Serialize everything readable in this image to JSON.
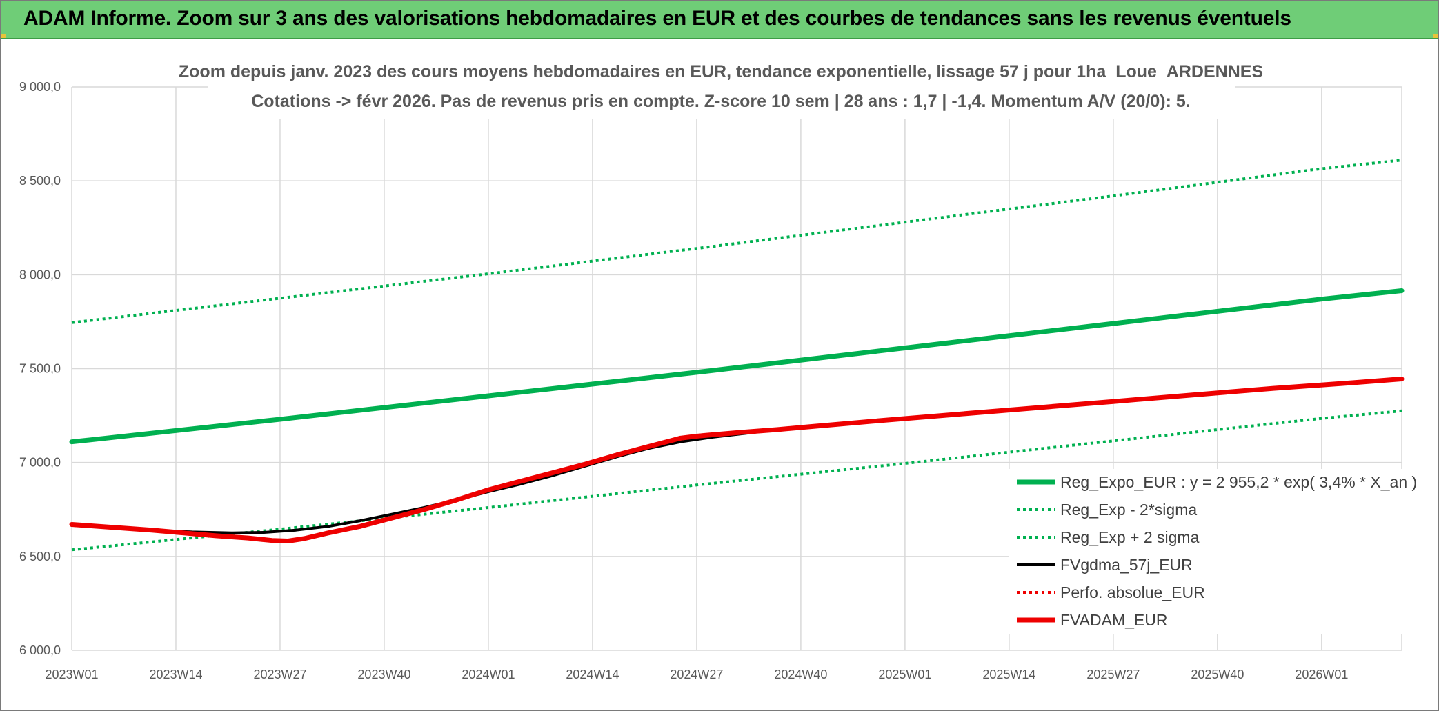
{
  "banner": {
    "title": "ADAM Informe. Zoom sur 3 ans des valorisations hebdomadaires en EUR et des courbes de tendances sans les revenus éventuels"
  },
  "colors": {
    "banner_bg": "#6fcd77",
    "trend_green": "#00b050",
    "fv_black": "#000000",
    "adam_red": "#ee0000",
    "grid": "#d9d9d9",
    "text_gray": "#595959"
  },
  "chart_data": {
    "type": "line",
    "title": [
      "Zoom depuis janv. 2023 des cours moyens hebdomadaires en EUR, tendance exponentielle, lissage 57 j pour 1ha_Loue_ARDENNES",
      "Cotations -> févr 2026. Pas de revenus pris en compte. Z-score 10 sem | 28 ans : 1,7 | -1,4. Momentum A/V (20/0): 5."
    ],
    "xlabel": "",
    "ylabel": "",
    "ylim": [
      6000,
      9000
    ],
    "y_ticks": [
      "6 000,0",
      "6 500,0",
      "7 000,0",
      "7 500,0",
      "8 000,0",
      "8 500,0",
      "9 000,0"
    ],
    "x_range_weeks": [
      0,
      166
    ],
    "x_ticks": [
      {
        "week": 0,
        "label": "2023W01"
      },
      {
        "week": 13,
        "label": "2023W14"
      },
      {
        "week": 26,
        "label": "2023W27"
      },
      {
        "week": 39,
        "label": "2023W40"
      },
      {
        "week": 52,
        "label": "2024W01"
      },
      {
        "week": 65,
        "label": "2024W14"
      },
      {
        "week": 78,
        "label": "2024W27"
      },
      {
        "week": 91,
        "label": "2024W40"
      },
      {
        "week": 104,
        "label": "2025W01"
      },
      {
        "week": 117,
        "label": "2025W14"
      },
      {
        "week": 130,
        "label": "2025W27"
      },
      {
        "week": 143,
        "label": "2025W40"
      },
      {
        "week": 156,
        "label": "2026W01"
      }
    ],
    "grid": true,
    "legend_position": "bottom-right",
    "series": [
      {
        "name": "Reg_Expo_EUR : y = 2 955,2 * exp( 3,4% *  X_an )",
        "style": "solid-thick",
        "color": "#00b050",
        "points": [
          [
            0,
            7110
          ],
          [
            26,
            7230
          ],
          [
            52,
            7355
          ],
          [
            78,
            7480
          ],
          [
            104,
            7610
          ],
          [
            130,
            7740
          ],
          [
            156,
            7870
          ],
          [
            166,
            7915
          ]
        ]
      },
      {
        "name": "Reg_Exp - 2*sigma",
        "style": "dotted",
        "color": "#00b050",
        "points": [
          [
            0,
            6535
          ],
          [
            26,
            6645
          ],
          [
            52,
            6760
          ],
          [
            78,
            6880
          ],
          [
            104,
            6995
          ],
          [
            130,
            7115
          ],
          [
            156,
            7235
          ],
          [
            166,
            7275
          ]
        ]
      },
      {
        "name": "Reg_Exp + 2 sigma",
        "style": "dotted",
        "color": "#00b050",
        "points": [
          [
            0,
            7745
          ],
          [
            26,
            7875
          ],
          [
            52,
            8005
          ],
          [
            78,
            8140
          ],
          [
            104,
            8280
          ],
          [
            130,
            8420
          ],
          [
            156,
            8565
          ],
          [
            166,
            8610
          ]
        ]
      },
      {
        "name": "FVgdma_57j_EUR",
        "style": "solid",
        "color": "#000000",
        "points": [
          [
            0,
            6665
          ],
          [
            5,
            6655
          ],
          [
            10,
            6640
          ],
          [
            15,
            6630
          ],
          [
            20,
            6625
          ],
          [
            24,
            6628
          ],
          [
            28,
            6640
          ],
          [
            32,
            6660
          ],
          [
            36,
            6690
          ],
          [
            40,
            6725
          ],
          [
            44,
            6760
          ],
          [
            48,
            6800
          ],
          [
            52,
            6845
          ],
          [
            56,
            6885
          ],
          [
            60,
            6930
          ],
          [
            64,
            6980
          ],
          [
            68,
            7030
          ],
          [
            72,
            7075
          ],
          [
            76,
            7110
          ],
          [
            80,
            7135
          ],
          [
            84,
            7155
          ],
          [
            88,
            7175
          ],
          [
            92,
            7190
          ],
          [
            100,
            7220
          ],
          [
            110,
            7255
          ],
          [
            120,
            7290
          ],
          [
            130,
            7325
          ],
          [
            140,
            7360
          ],
          [
            150,
            7395
          ],
          [
            160,
            7425
          ],
          [
            166,
            7440
          ]
        ]
      },
      {
        "name": "Perfo. absolue_EUR",
        "style": "dotted",
        "color": "#ee0000",
        "points": []
      },
      {
        "name": "FVADAM_EUR",
        "style": "solid-thick",
        "color": "#ee0000",
        "points": [
          [
            0,
            6670
          ],
          [
            5,
            6655
          ],
          [
            10,
            6640
          ],
          [
            14,
            6625
          ],
          [
            18,
            6610
          ],
          [
            22,
            6598
          ],
          [
            25,
            6585
          ],
          [
            27,
            6582
          ],
          [
            29,
            6595
          ],
          [
            32,
            6625
          ],
          [
            36,
            6660
          ],
          [
            40,
            6705
          ],
          [
            44,
            6750
          ],
          [
            48,
            6800
          ],
          [
            52,
            6855
          ],
          [
            56,
            6900
          ],
          [
            60,
            6945
          ],
          [
            64,
            6990
          ],
          [
            68,
            7040
          ],
          [
            72,
            7085
          ],
          [
            76,
            7130
          ],
          [
            78,
            7140
          ],
          [
            80,
            7148
          ],
          [
            84,
            7162
          ],
          [
            88,
            7175
          ],
          [
            92,
            7190
          ],
          [
            100,
            7220
          ],
          [
            110,
            7255
          ],
          [
            120,
            7290
          ],
          [
            130,
            7325
          ],
          [
            140,
            7360
          ],
          [
            150,
            7395
          ],
          [
            160,
            7425
          ],
          [
            166,
            7445
          ]
        ]
      }
    ]
  }
}
